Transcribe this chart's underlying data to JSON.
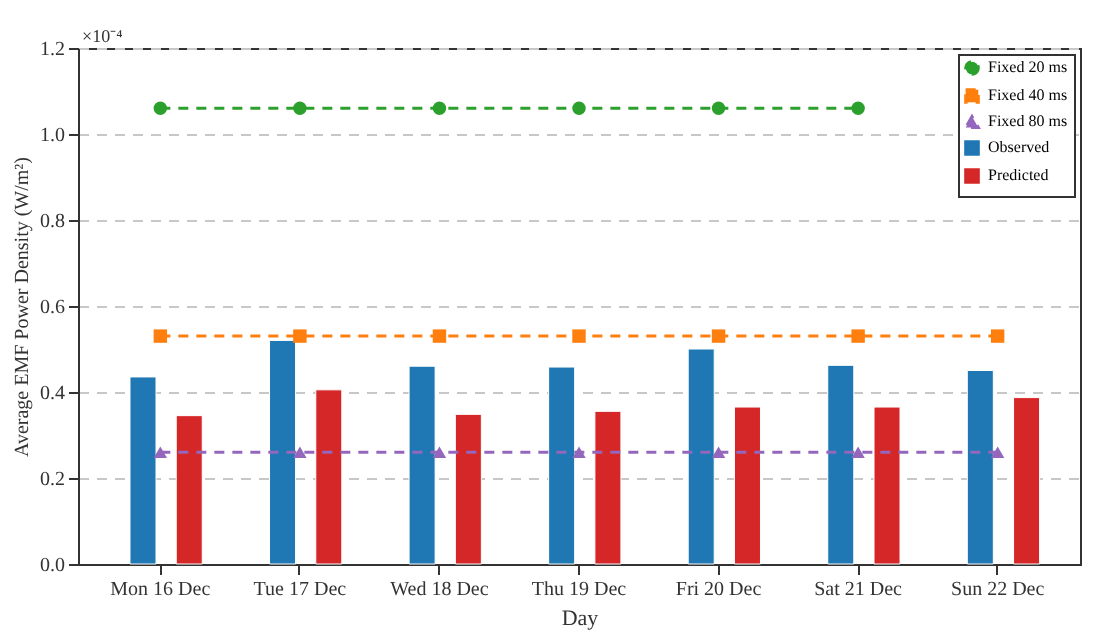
{
  "chart_data": {
    "type": "bar",
    "xlabel": "Day",
    "ylabel": "Average EMF Power Density (W/m²)",
    "categories": [
      "Mon 16 Dec",
      "Tue 17 Dec",
      "Wed 18 Dec",
      "Thu 19 Dec",
      "Fri 20 Dec",
      "Sat 21 Dec",
      "Sun 22 Dec"
    ],
    "series": [
      {
        "name": "Fixed 20 ms",
        "type": "line",
        "color": "#2ca02c",
        "marker": "circle",
        "line_style": "dashed",
        "values": [
          1.06,
          1.06,
          1.06,
          1.06,
          1.06,
          1.06,
          null
        ]
      },
      {
        "name": "Fixed 40 ms",
        "type": "line",
        "color": "#ff7f0e",
        "marker": "square",
        "line_style": "dashed",
        "values": [
          0.53,
          0.53,
          0.53,
          0.53,
          0.53,
          0.53,
          0.53
        ]
      },
      {
        "name": "Fixed 80 ms",
        "type": "line",
        "color": "#9467bd",
        "marker": "triangle",
        "line_style": "dashed",
        "values": [
          0.26,
          0.26,
          0.26,
          0.26,
          0.26,
          0.26,
          0.26
        ]
      },
      {
        "name": "Observed",
        "color": "#1f77b4",
        "values": [
          0.435,
          0.52,
          0.46,
          0.458,
          0.5,
          0.462,
          0.45
        ]
      },
      {
        "name": "Predicted",
        "color": "#d62728",
        "values": [
          0.345,
          0.405,
          0.348,
          0.355,
          0.365,
          0.365,
          0.387
        ]
      }
    ],
    "ylim": [
      0,
      1.2
    ],
    "yticks": [
      {
        "value": 0,
        "label": "0.0"
      },
      {
        "value": 0.2,
        "label": "0.2"
      },
      {
        "value": 0.4,
        "label": "0.4"
      },
      {
        "value": 0.6,
        "label": "0.6"
      },
      {
        "value": 0.8,
        "label": "0.8"
      },
      {
        "value": 1.0,
        "label": "1.0"
      },
      {
        "value": 1.2,
        "label": "1.2"
      }
    ],
    "annotations": [
      "×10⁻⁴"
    ],
    "grid": "y",
    "legend": "top right"
  }
}
